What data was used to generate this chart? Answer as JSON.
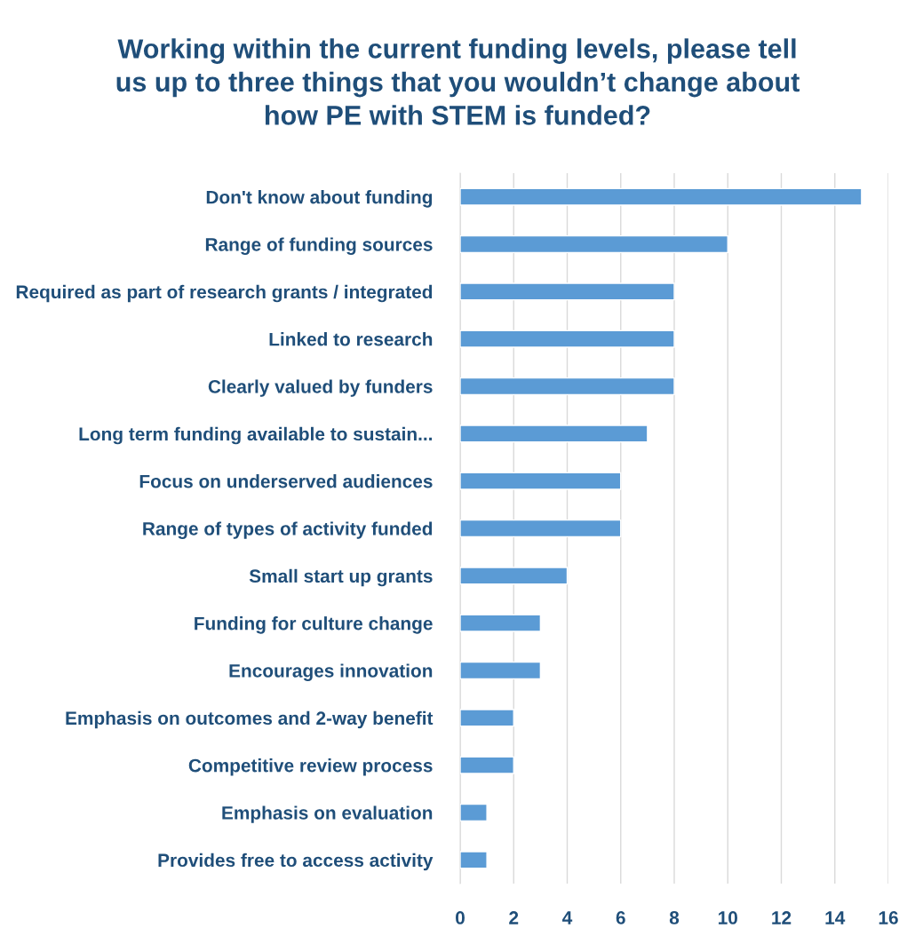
{
  "chart_data": {
    "type": "bar",
    "orientation": "horizontal",
    "title": "Working within the current funding levels, please tell\nus up to three things that you wouldn’t change about\nhow PE with STEM is funded?",
    "categories": [
      "Don't know about funding",
      "Range of funding sources",
      "Required as part of research grants / integrated",
      "Linked to research",
      "Clearly valued by funders",
      "Long term funding available to sustain...",
      "Focus on underserved audiences",
      "Range of types of activity funded",
      "Small start up grants",
      "Funding for culture change",
      "Encourages innovation",
      "Emphasis on outcomes and 2-way benefit",
      "Competitive review process",
      "Emphasis on evaluation",
      "Provides free to access activity"
    ],
    "values": [
      15,
      10,
      8,
      8,
      8,
      7,
      6,
      6,
      4,
      3,
      3,
      2,
      2,
      1,
      1
    ],
    "color": "#5b9bd5",
    "xlim": [
      0,
      16
    ],
    "xticks": [
      0,
      2,
      4,
      6,
      8,
      10,
      12,
      14,
      16
    ],
    "grid": "x"
  }
}
